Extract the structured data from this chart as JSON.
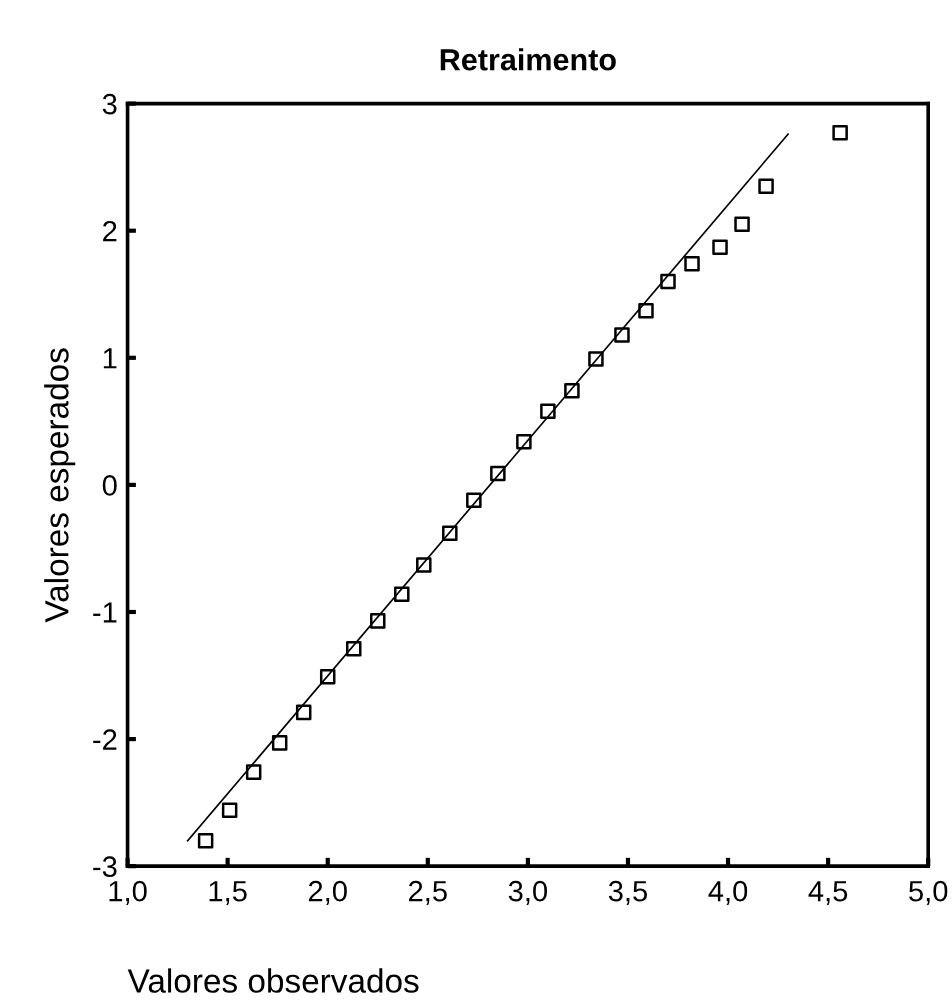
{
  "chart_data": {
    "type": "scatter",
    "title": "Retraimento",
    "xlabel": "Valores observados",
    "ylabel": "Valores esperados",
    "xlim": [
      1.0,
      5.0
    ],
    "ylim": [
      -3,
      3
    ],
    "xticks": [
      {
        "value": 1.0,
        "label": "1,0"
      },
      {
        "value": 1.5,
        "label": "1,5"
      },
      {
        "value": 2.0,
        "label": "2,0"
      },
      {
        "value": 2.5,
        "label": "2,5"
      },
      {
        "value": 3.0,
        "label": "3,0"
      },
      {
        "value": 3.5,
        "label": "3,5"
      },
      {
        "value": 4.0,
        "label": "4,0"
      },
      {
        "value": 4.5,
        "label": "4,5"
      },
      {
        "value": 5.0,
        "label": "5,0"
      }
    ],
    "yticks": [
      -3,
      -2,
      -1,
      0,
      1,
      2,
      3
    ],
    "grid": false,
    "legend": false,
    "marker": "square",
    "series": [
      {
        "color": "#000000",
        "x": [
          1.39,
          1.51,
          1.63,
          1.76,
          1.88,
          2.0,
          2.13,
          2.25,
          2.37,
          2.48,
          2.61,
          2.73,
          2.85,
          2.98,
          3.1,
          3.22,
          3.34,
          3.47,
          3.59,
          3.7,
          3.82,
          3.96,
          4.07,
          4.19,
          4.56
        ],
        "values": [
          -2.8,
          -2.56,
          -2.26,
          -2.03,
          -1.79,
          -1.51,
          -1.29,
          -1.07,
          -0.86,
          -0.63,
          -0.38,
          -0.12,
          0.09,
          0.34,
          0.58,
          0.74,
          0.99,
          1.18,
          1.37,
          1.6,
          1.74,
          1.87,
          2.05,
          2.35,
          2.77
        ]
      },
      {
        "type": "line",
        "color": "#000000",
        "marker": "none",
        "line_style": "solid",
        "x": [
          1.3,
          4.3
        ],
        "values": [
          -2.8,
          2.76
        ]
      }
    ]
  }
}
